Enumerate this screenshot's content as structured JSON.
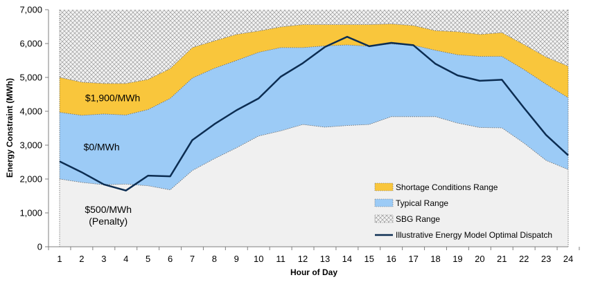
{
  "chart_data": {
    "type": "area",
    "title": "",
    "xlabel": "Hour of Day",
    "ylabel": "Energy Constraint (MWh)",
    "x": [
      1,
      2,
      3,
      4,
      5,
      6,
      7,
      8,
      9,
      10,
      11,
      12,
      13,
      14,
      15,
      16,
      17,
      18,
      19,
      20,
      21,
      22,
      23,
      24
    ],
    "xlim": [
      1,
      24
    ],
    "ylim": [
      0,
      7000
    ],
    "y_ticks": [
      0,
      1000,
      2000,
      3000,
      4000,
      5000,
      6000,
      7000
    ],
    "y_tick_labels": [
      "0",
      "1,000",
      "2,000",
      "3,000",
      "4,000",
      "5,000",
      "6,000",
      "7,000"
    ],
    "grid": false,
    "legend_position": "bottom-right",
    "boundaries": {
      "min_limit": [
        2000,
        1900,
        1830,
        1850,
        1800,
        1680,
        2250,
        2600,
        2920,
        3270,
        3420,
        3610,
        3530,
        3580,
        3610,
        3840,
        3840,
        3840,
        3650,
        3520,
        3510,
        3060,
        2550,
        2280
      ],
      "typical_max": [
        3970,
        3880,
        3920,
        3890,
        4050,
        4380,
        4980,
        5270,
        5500,
        5740,
        5880,
        5880,
        5930,
        5960,
        5920,
        5990,
        5950,
        5800,
        5670,
        5620,
        5620,
        5230,
        4800,
        4400
      ],
      "shortage_max": [
        5000,
        4860,
        4820,
        4820,
        4940,
        5260,
        5880,
        6080,
        6270,
        6370,
        6490,
        6560,
        6560,
        6560,
        6560,
        6580,
        6530,
        6380,
        6350,
        6270,
        6320,
        5970,
        5600,
        5330
      ],
      "chart_max": 7000
    },
    "series": [
      {
        "name": "Illustrative Energy Model Optimal Dispatch",
        "type": "line",
        "values": [
          2520,
          2200,
          1840,
          1660,
          2100,
          2080,
          3150,
          3620,
          4030,
          4380,
          5020,
          5420,
          5900,
          6200,
          5920,
          6020,
          5950,
          5400,
          5060,
          4900,
          4930,
          4100,
          3300,
          2700
        ]
      }
    ],
    "legend": [
      {
        "label": "Shortage Conditions Range",
        "swatch": "shortage"
      },
      {
        "label": "Typical Range",
        "swatch": "typical"
      },
      {
        "label": "SBG Range",
        "swatch": "sbg"
      },
      {
        "label": "Illustrative Energy Model Optimal Dispatch",
        "swatch": "line"
      }
    ],
    "annotations": [
      {
        "text": "$1,900/MWh",
        "x": 3.4,
        "y": 4300
      },
      {
        "text": "$0/MWh",
        "x": 2.9,
        "y": 2850
      },
      {
        "text": "$500/MWh",
        "x": 3.2,
        "y": 1000
      },
      {
        "text": "(Penalty)",
        "x": 3.2,
        "y": 650
      }
    ],
    "colors": {
      "shortage": "#f9c63c",
      "typical": "#9ccbf6",
      "sbg_fill": "#f2f2f2",
      "sbg_hatch": "#8c8c8c",
      "below": "#f0f0f0",
      "line": "#0c2d52"
    }
  }
}
